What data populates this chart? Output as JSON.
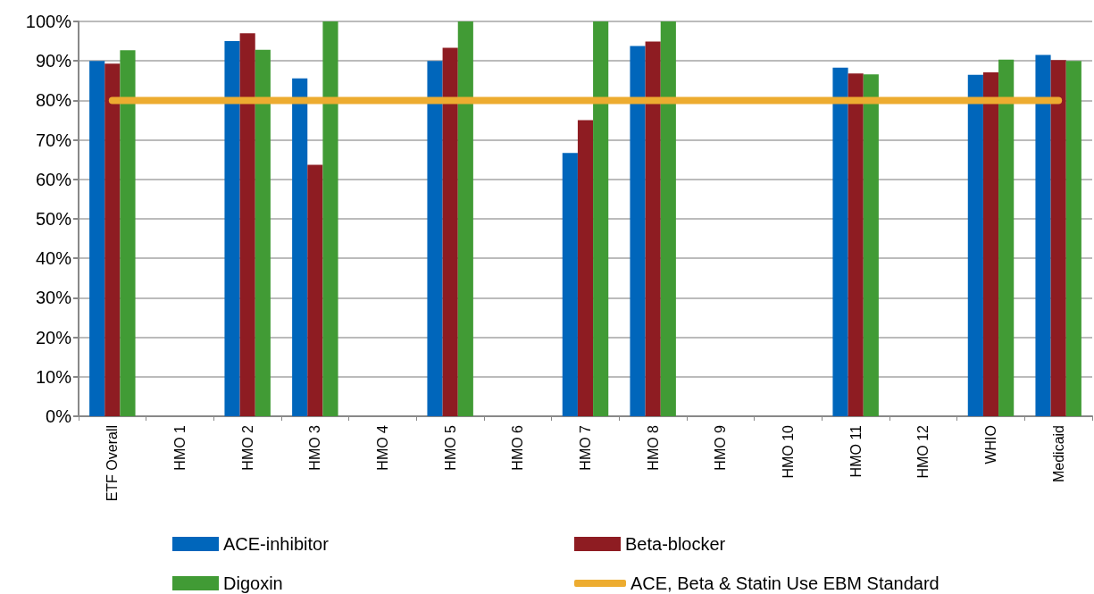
{
  "chart_data": {
    "type": "bar",
    "categories": [
      "ETF Overall",
      "HMO 1",
      "HMO 2",
      "HMO 3",
      "HMO 4",
      "HMO 5",
      "HMO 6",
      "HMO 7",
      "HMO 8",
      "HMO 9",
      "HMO 10",
      "HMO 11",
      "HMO 12",
      "WHIO",
      "Medicaid"
    ],
    "series": [
      {
        "name": "ACE-inhibitor",
        "color": "#0066bb",
        "values": [
          90,
          null,
          95,
          85.6,
          null,
          90,
          null,
          66.7,
          93.8,
          null,
          null,
          88.3,
          null,
          86.5,
          91.5
        ]
      },
      {
        "name": "Beta-blocker",
        "color": "#8e1c22",
        "values": [
          89.3,
          null,
          97,
          63.7,
          null,
          93.3,
          null,
          75,
          94.9,
          null,
          null,
          86.8,
          null,
          87.1,
          90.2
        ]
      },
      {
        "name": "Digoxin",
        "color": "#419b35",
        "values": [
          92.7,
          null,
          92.8,
          100,
          null,
          100,
          null,
          100,
          100,
          null,
          null,
          86.6,
          null,
          90.3,
          90
        ]
      },
      {
        "name": "ACE, Beta & Statin Use EBM Standard",
        "type": "line",
        "color": "#edac30",
        "values": [
          80,
          80,
          80,
          80,
          80,
          80,
          80,
          80,
          80,
          80,
          80,
          80,
          80,
          80,
          80
        ]
      }
    ],
    "ylim": [
      0,
      100
    ],
    "yticks": [
      {
        "value": 0,
        "label": "0%"
      },
      {
        "value": 10,
        "label": "10%"
      },
      {
        "value": 20,
        "label": "20%"
      },
      {
        "value": 30,
        "label": "30%"
      },
      {
        "value": 40,
        "label": "40%"
      },
      {
        "value": 50,
        "label": "50%"
      },
      {
        "value": 60,
        "label": "60%"
      },
      {
        "value": 70,
        "label": "70%"
      },
      {
        "value": 80,
        "label": "80%"
      },
      {
        "value": 90,
        "label": "90%"
      },
      {
        "value": 100,
        "label": "100%"
      }
    ],
    "grid": "y",
    "legend": "bottom"
  }
}
